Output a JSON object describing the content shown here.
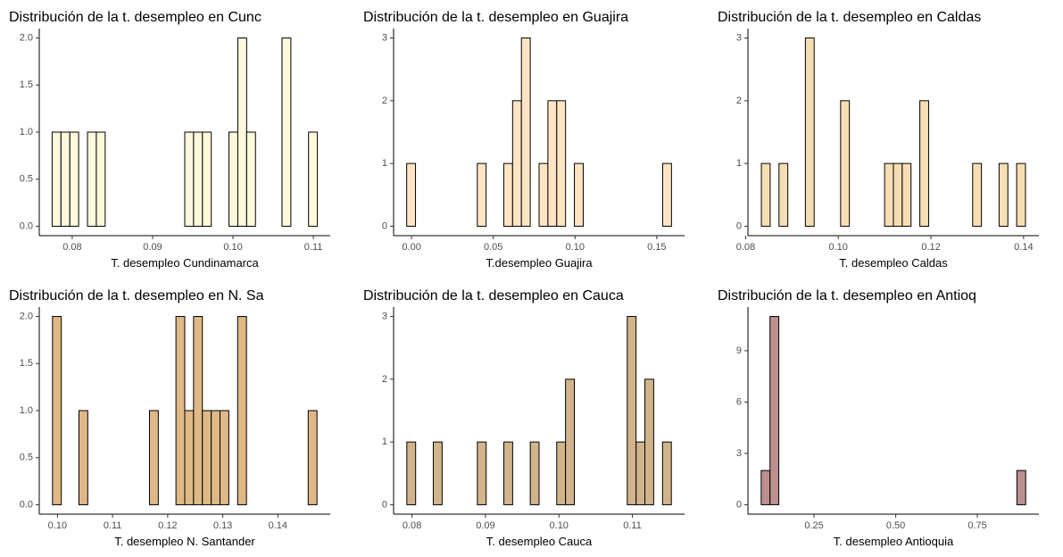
{
  "chart_data": [
    {
      "type": "histogram",
      "title": "Distribución de la t. desempleo en Cunc",
      "x_label": "T. desempleo Cundinamarca",
      "color": "#fff8dc",
      "bins": [
        0.0775,
        0.0786,
        0.0797,
        0.0808,
        0.0819,
        0.083,
        0.0841,
        0.0852,
        0.0863,
        0.0874,
        0.0885,
        0.0896,
        0.0907,
        0.0918,
        0.0929,
        0.094,
        0.0951,
        0.0962,
        0.0973,
        0.0984,
        0.0995,
        0.1006,
        0.1017,
        0.1028,
        0.1039,
        0.105,
        0.1061,
        0.1072,
        0.1083,
        0.1094,
        0.1105
      ],
      "counts": [
        1,
        1,
        1,
        0,
        1,
        1,
        0,
        0,
        0,
        0,
        0,
        0,
        0,
        0,
        0,
        1,
        1,
        1,
        0,
        0,
        1,
        2,
        1,
        0,
        0,
        0,
        2,
        0,
        0,
        1
      ],
      "xlim": [
        0.0759,
        0.1121
      ],
      "xticks": [
        0.08,
        0.09,
        {
          "value": 0.1,
          "label": "0.10"
        },
        0.11
      ],
      "ylim": [
        -0.1,
        2.1
      ],
      "yticks": [
        {
          "value": 0,
          "label": "0.0"
        },
        0.5,
        {
          "value": 1,
          "label": "1.0"
        },
        1.5,
        {
          "value": 2,
          "label": "2.0"
        }
      ]
    },
    {
      "type": "histogram",
      "title": "Distribución de la t. desempleo en Guajira",
      "x_label": "T.desempleo Guajira",
      "color": "#ffe4c4",
      "bins": [
        -0.003,
        0.0024,
        0.0078,
        0.0132,
        0.0186,
        0.024,
        0.0294,
        0.0348,
        0.0402,
        0.0456,
        0.051,
        0.0564,
        0.0618,
        0.0672,
        0.0726,
        0.078,
        0.0834,
        0.0888,
        0.0942,
        0.0996,
        0.105,
        0.1104,
        0.1158,
        0.1212,
        0.1266,
        0.132,
        0.1374,
        0.1428,
        0.1482,
        0.1536,
        0.159
      ],
      "counts": [
        1,
        0,
        0,
        0,
        0,
        0,
        0,
        0,
        1,
        0,
        0,
        1,
        2,
        3,
        0,
        1,
        2,
        2,
        0,
        1,
        0,
        0,
        0,
        0,
        0,
        0,
        0,
        0,
        0,
        1
      ],
      "xlim": [
        -0.011,
        0.167
      ],
      "xticks": [
        {
          "value": 0,
          "label": "0.00"
        },
        0.05,
        {
          "value": 0.1,
          "label": "0.10"
        },
        0.15
      ],
      "ylim": [
        -0.15,
        3.15
      ],
      "yticks": [
        0,
        1,
        2,
        3
      ]
    },
    {
      "type": "histogram",
      "title": "Distribución de la t. desempleo en Caldas",
      "x_label": "T. desempleo Caldas",
      "color": "#f5deb3",
      "bins": [
        0.0834,
        0.0853,
        0.0872,
        0.0891,
        0.091,
        0.0929,
        0.0948,
        0.0967,
        0.0986,
        0.1005,
        0.1024,
        0.1043,
        0.1062,
        0.1081,
        0.11,
        0.1119,
        0.1138,
        0.1157,
        0.1176,
        0.1195,
        0.1214,
        0.1233,
        0.1252,
        0.1271,
        0.129,
        0.1309,
        0.1328,
        0.1347,
        0.1366,
        0.1385,
        0.1404
      ],
      "counts": [
        1,
        0,
        1,
        0,
        0,
        3,
        0,
        0,
        0,
        2,
        0,
        0,
        0,
        0,
        1,
        1,
        1,
        0,
        2,
        0,
        0,
        0,
        0,
        0,
        1,
        0,
        0,
        1,
        0,
        1
      ],
      "xlim": [
        0.0805,
        0.1433
      ],
      "xticks": [
        0.08,
        {
          "value": 0.1,
          "label": "0.10"
        },
        0.12,
        0.14
      ],
      "ylim": [
        -0.15,
        3.15
      ],
      "yticks": [
        0,
        1,
        2,
        3
      ]
    },
    {
      "type": "histogram",
      "title": "Distribución de la t. desempleo en N. Sa",
      "x_label": "T. desempleo N. Santander",
      "color": "#deb887",
      "bins": [
        0.0991,
        0.1007,
        0.1023,
        0.1039,
        0.1055,
        0.1071,
        0.1087,
        0.1103,
        0.1119,
        0.1135,
        0.1151,
        0.1167,
        0.1183,
        0.1199,
        0.1215,
        0.1231,
        0.1247,
        0.1263,
        0.1279,
        0.1295,
        0.1311,
        0.1327,
        0.1343,
        0.1359,
        0.1375,
        0.1391,
        0.1407,
        0.1423,
        0.1439,
        0.1455,
        0.1471
      ],
      "counts": [
        2,
        0,
        0,
        1,
        0,
        0,
        0,
        0,
        0,
        0,
        0,
        1,
        0,
        0,
        2,
        1,
        2,
        1,
        1,
        1,
        0,
        2,
        0,
        0,
        0,
        0,
        0,
        0,
        0,
        1
      ],
      "xlim": [
        0.0967,
        0.1495
      ],
      "xticks": [
        {
          "value": 0.1,
          "label": "0.10"
        },
        0.11,
        0.12,
        0.13,
        0.14
      ],
      "ylim": [
        -0.1,
        2.1
      ],
      "yticks": [
        {
          "value": 0,
          "label": "0.0"
        },
        0.5,
        {
          "value": 1,
          "label": "1.0"
        },
        1.5,
        {
          "value": 2,
          "label": "2.0"
        }
      ]
    },
    {
      "type": "histogram",
      "title": "Distribución de la t. desempleo en Cauca",
      "x_label": "T. desempleo Cauca",
      "color": "#d2b48c",
      "bins": [
        0.0793,
        0.0805,
        0.0817,
        0.0829,
        0.0841,
        0.0853,
        0.0865,
        0.0877,
        0.0889,
        0.0901,
        0.0913,
        0.0925,
        0.0937,
        0.0949,
        0.0961,
        0.0973,
        0.0985,
        0.0997,
        0.1009,
        0.1021,
        0.1033,
        0.1045,
        0.1057,
        0.1069,
        0.1081,
        0.1093,
        0.1105,
        0.1117,
        0.1129,
        0.1141,
        0.1153
      ],
      "counts": [
        1,
        0,
        0,
        1,
        0,
        0,
        0,
        0,
        1,
        0,
        0,
        1,
        0,
        0,
        1,
        0,
        0,
        1,
        2,
        0,
        0,
        0,
        0,
        0,
        0,
        3,
        1,
        2,
        0,
        1
      ],
      "xlim": [
        0.0775,
        0.1171
      ],
      "xticks": [
        0.08,
        0.09,
        {
          "value": 0.1,
          "label": "0.10"
        },
        0.11
      ],
      "ylim": [
        -0.15,
        3.15
      ],
      "yticks": [
        0,
        1,
        2,
        3
      ]
    },
    {
      "type": "histogram",
      "title": "Distribución de la t. desempleo en Antioq",
      "x_label": "T. desempleo Antioquia",
      "color": "#bc8f8f",
      "bins": [
        0.088,
        0.115,
        0.142,
        0.169,
        0.196,
        0.223,
        0.25,
        0.277,
        0.304,
        0.331,
        0.358,
        0.385,
        0.412,
        0.439,
        0.466,
        0.493,
        0.52,
        0.547,
        0.574,
        0.601,
        0.628,
        0.655,
        0.682,
        0.709,
        0.736,
        0.763,
        0.79,
        0.817,
        0.844,
        0.871,
        0.898
      ],
      "counts": [
        2,
        11,
        0,
        0,
        0,
        0,
        0,
        0,
        0,
        0,
        0,
        0,
        0,
        0,
        0,
        0,
        0,
        0,
        0,
        0,
        0,
        0,
        0,
        0,
        0,
        0,
        0,
        0,
        0,
        2
      ],
      "xlim": [
        0.0475,
        0.9385
      ],
      "xticks": [
        0.25,
        {
          "value": 0.5,
          "label": "0.50"
        },
        0.75
      ],
      "ylim": [
        -0.55,
        11.55
      ],
      "yticks": [
        0,
        3,
        6,
        9
      ]
    }
  ]
}
